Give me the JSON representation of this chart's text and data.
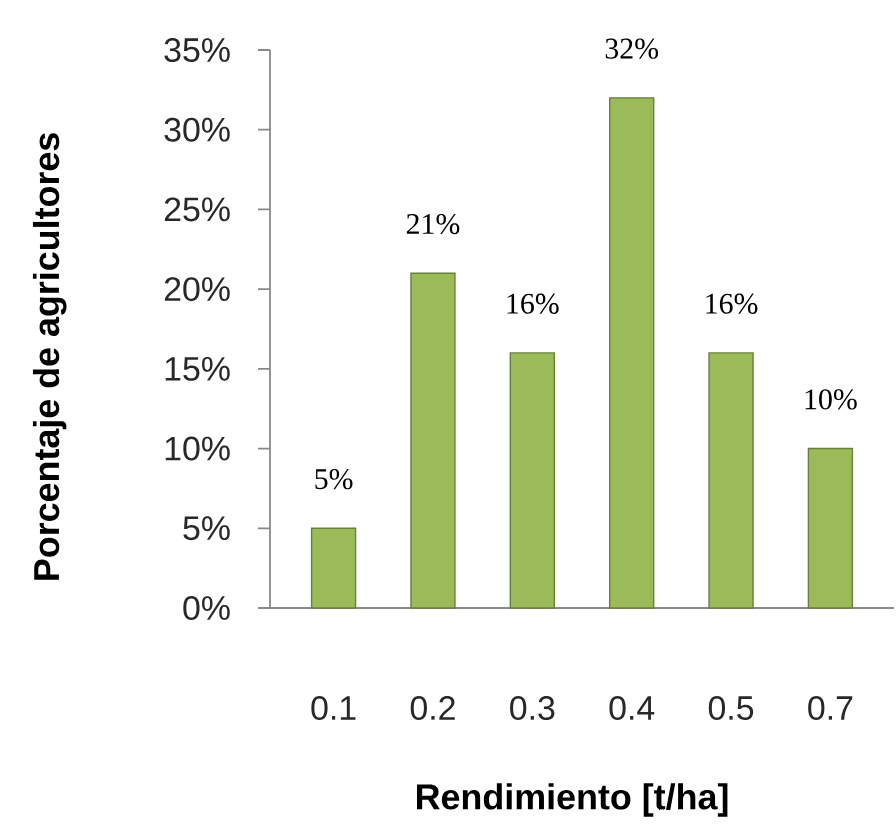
{
  "chart_data": {
    "type": "bar",
    "xlabel": "Rendimiento [t/ha]",
    "ylabel": "Porcentaje de agricultores",
    "categories": [
      "0.1",
      "0.2",
      "0.3",
      "0.4",
      "0.5",
      "0.7"
    ],
    "values": [
      5,
      21,
      16,
      32,
      16,
      10
    ],
    "value_labels": [
      "5%",
      "21%",
      "16%",
      "32%",
      "16%",
      "10%"
    ],
    "color": "#9bbb59",
    "ylim": [
      0,
      35
    ],
    "yticks": [
      {
        "value": 0,
        "label": "0%"
      },
      {
        "value": 5,
        "label": "5%"
      },
      {
        "value": 10,
        "label": "10%"
      },
      {
        "value": 15,
        "label": "15%"
      },
      {
        "value": 20,
        "label": "20%"
      },
      {
        "value": 25,
        "label": "25%"
      },
      {
        "value": 30,
        "label": "30%"
      },
      {
        "value": 35,
        "label": "35%"
      }
    ]
  }
}
